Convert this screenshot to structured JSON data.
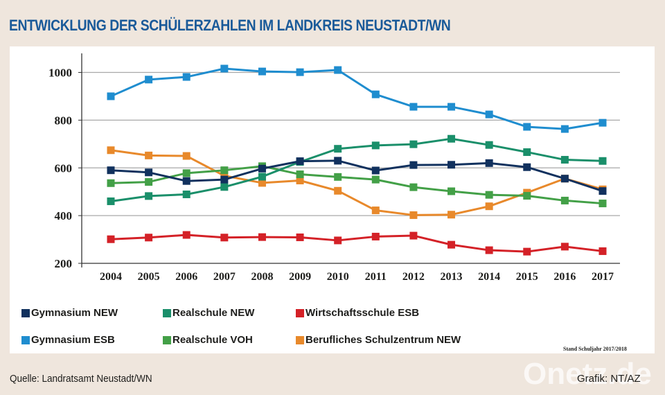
{
  "header": {
    "title": "ENTWICKLUNG DER SCHÜLERZAHLEN IM LANDKREIS NEUSTADT/WN"
  },
  "footer": {
    "stand": "Stand Schuljahr 2017/2018",
    "source": "Quelle: Landratsamt Neustadt/WN",
    "credit": "Grafik: NT/AZ",
    "watermark": "Onetz.de"
  },
  "chart_data": {
    "type": "line",
    "title": "ENTWICKLUNG DER SCHÜLERZAHLEN IM LANDKREIS NEUSTADT/WN",
    "xlabel": "",
    "ylabel": "",
    "x": [
      "2004",
      "2005",
      "2006",
      "2007",
      "2008",
      "2009",
      "2010",
      "2011",
      "2012",
      "2013",
      "2014",
      "2015",
      "2016",
      "2017"
    ],
    "ylim": [
      200,
      1000
    ],
    "yticks": [
      "200",
      "400",
      "600",
      "800",
      "1000"
    ],
    "ytick_values": [
      200,
      400,
      600,
      800,
      1000
    ],
    "grid": true,
    "legend_position": "bottom",
    "series": [
      {
        "name": "Gymnasium NEW",
        "color": "#11315e",
        "values": [
          590,
          581,
          545,
          551,
          597,
          628,
          630,
          589,
          612,
          613,
          620,
          603,
          555,
          503
        ]
      },
      {
        "name": "Realschule NEW",
        "color": "#1a8f6a",
        "values": [
          460,
          482,
          489,
          520,
          563,
          625,
          680,
          694,
          699,
          722,
          696,
          666,
          634,
          629
        ]
      },
      {
        "name": "Wirtschaftsschule ESB",
        "color": "#d42127",
        "values": [
          301,
          308,
          319,
          308,
          310,
          309,
          296,
          312,
          316,
          278,
          255,
          249,
          270,
          251
        ]
      },
      {
        "name": "Gymnasium ESB",
        "color": "#1f8dcf",
        "values": [
          900,
          970,
          981,
          1016,
          1004,
          1001,
          1010,
          908,
          856,
          856,
          824,
          772,
          763,
          789
        ]
      },
      {
        "name": "Realschule VOH",
        "color": "#43a047",
        "values": [
          536,
          541,
          578,
          590,
          607,
          573,
          562,
          551,
          519,
          502,
          487,
          483,
          463,
          451
        ]
      },
      {
        "name": "Berufliches Schulzentrum NEW",
        "color": "#e8892b",
        "values": [
          674,
          652,
          650,
          567,
          537,
          547,
          504,
          422,
          402,
          404,
          439,
          496,
          555,
          510
        ]
      }
    ]
  }
}
